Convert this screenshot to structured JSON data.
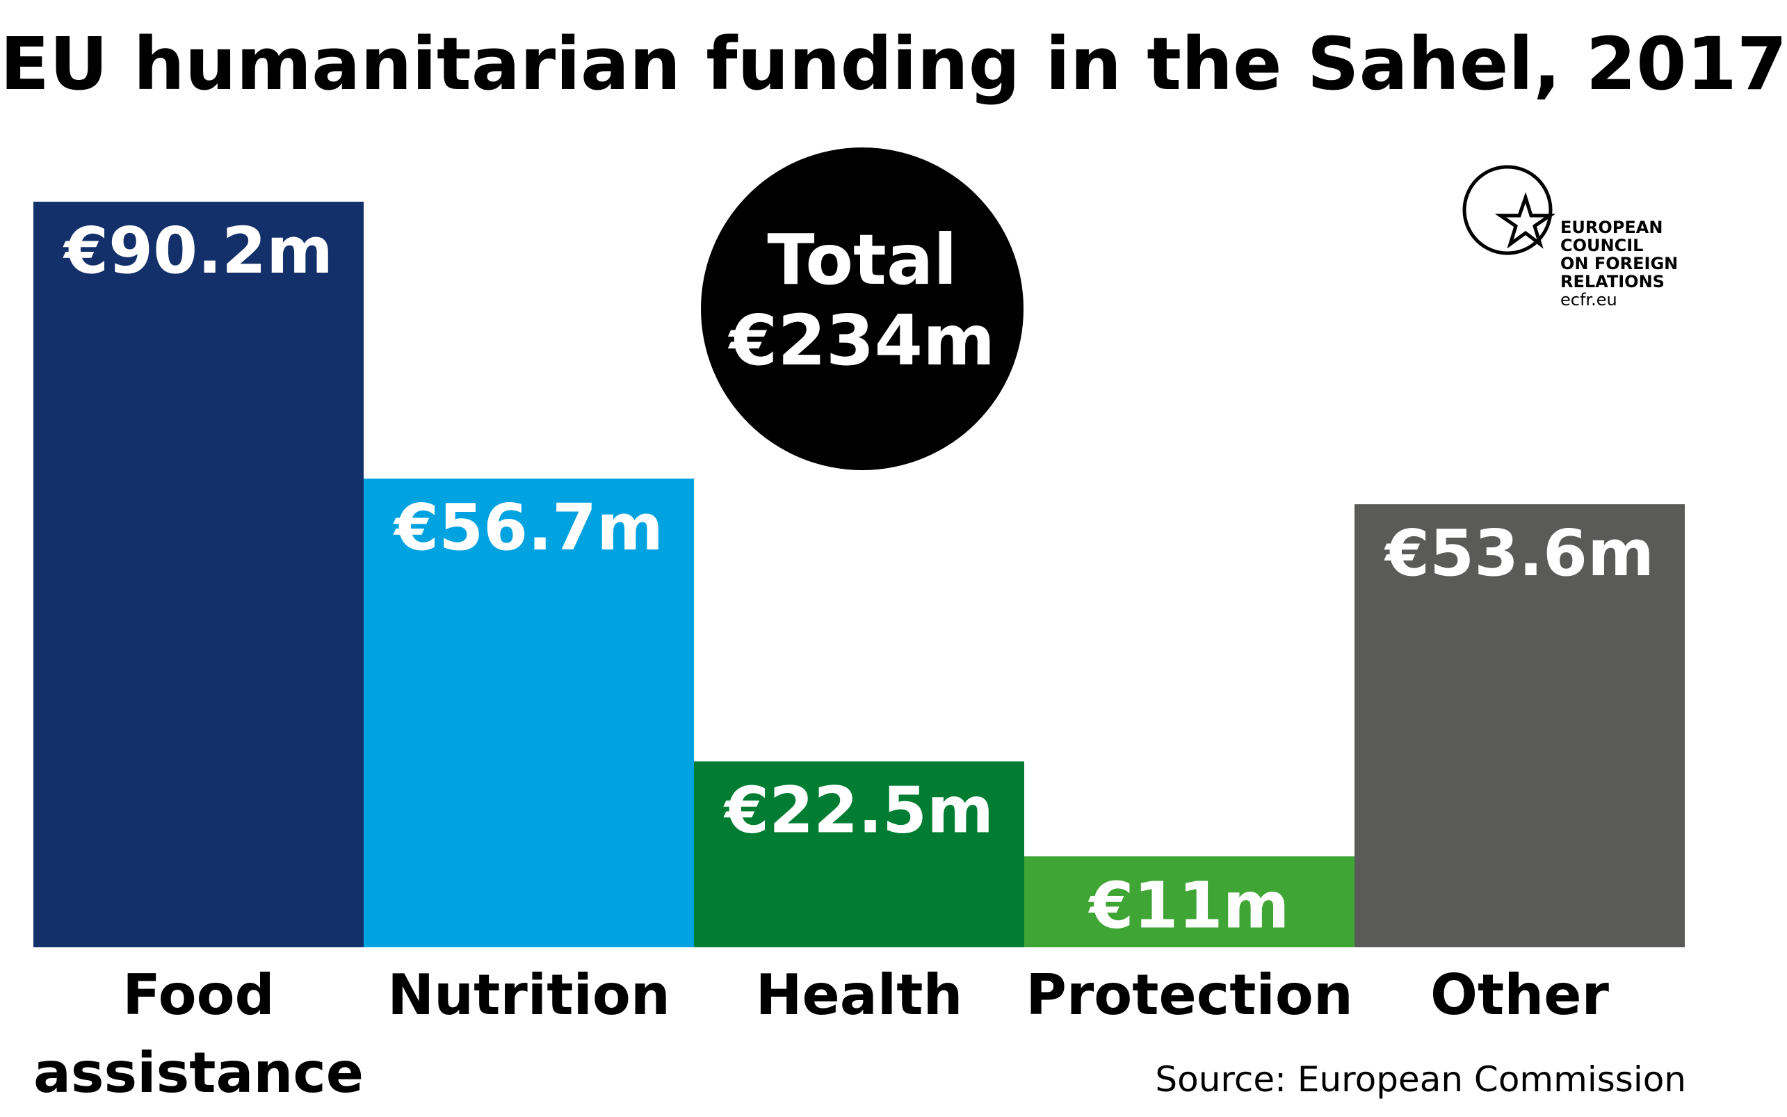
{
  "chart_data": {
    "type": "bar",
    "title": "EU humanitarian funding in the Sahel, 2017",
    "categories": [
      "Food assistance",
      "Nutrition",
      "Health",
      "Protection",
      "Other"
    ],
    "category_lines": [
      [
        "Food",
        "assistance"
      ],
      [
        "Nutrition"
      ],
      [
        "Health"
      ],
      [
        "Protection"
      ],
      [
        "Other"
      ]
    ],
    "values": [
      90.2,
      56.7,
      22.5,
      11,
      53.6
    ],
    "value_labels": [
      "€90.2m",
      "€56.7m",
      "€22.5m",
      "€11m",
      "€53.6m"
    ],
    "colors": [
      "#14306a",
      "#00a3e0",
      "#007d32",
      "#3fa535",
      "#5a5a59"
    ],
    "unit": "€m",
    "total": {
      "line1": "Total",
      "line2": "€234m",
      "color": "#000000"
    },
    "source": "Source: European Commission",
    "grid": false,
    "legend": "none"
  },
  "logo": {
    "icon": "ecfr-circle-star-icon",
    "lines": [
      "EUROPEAN",
      "COUNCIL",
      "ON FOREIGN",
      "RELATIONS"
    ],
    "url": "ecfr.eu"
  }
}
